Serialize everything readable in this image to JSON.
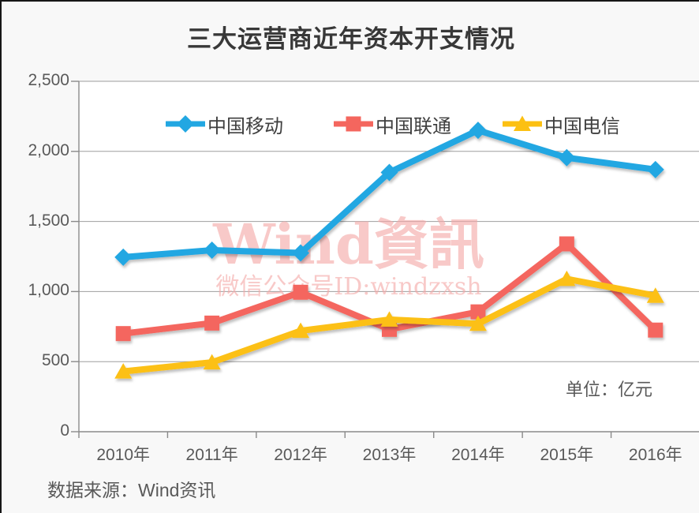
{
  "page": {
    "title": "三大运营商近年资本开支情况",
    "unit_note": "单位：亿元",
    "source_note": "数据来源：Wind资讯"
  },
  "watermark": {
    "line1": "Wind資訊",
    "line2": "微信公众号ID:windzxsh",
    "color": "#f4a9a7"
  },
  "colors": {
    "grid": "#9e9e9e",
    "axis": "#8a8a8a",
    "title_text": "#383838",
    "label_text": "#595959"
  },
  "chart_data": {
    "type": "line",
    "title": "三大运营商近年资本开支情况",
    "categories": [
      "2010年",
      "2011年",
      "2012年",
      "2013年",
      "2014年",
      "2015年",
      "2016年"
    ],
    "series": [
      {
        "name": "中国移动",
        "color": "#22a7e2",
        "marker": "diamond",
        "values": [
          1245,
          1295,
          1275,
          1850,
          2150,
          1955,
          1870
        ]
      },
      {
        "name": "中国联通",
        "color": "#f4665e",
        "marker": "square",
        "values": [
          700,
          775,
          995,
          730,
          855,
          1340,
          725
        ]
      },
      {
        "name": "中国电信",
        "color": "#fcc012",
        "marker": "triangle",
        "values": [
          430,
          495,
          720,
          800,
          770,
          1090,
          970
        ]
      }
    ],
    "ylim": [
      0,
      2500
    ],
    "ytick_interval": 500,
    "ytick_labels": [
      "0",
      "500",
      "1,000",
      "1,500",
      "2,000",
      "2,500"
    ],
    "grid": true,
    "legend_position": "top",
    "unit": "亿元"
  }
}
